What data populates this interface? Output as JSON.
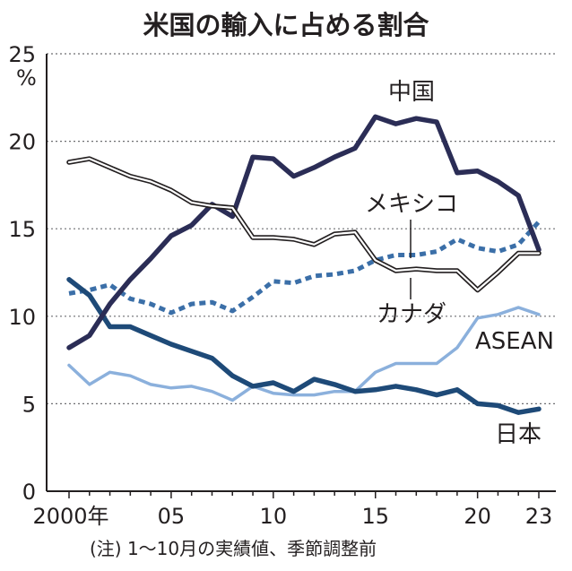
{
  "chart_data": {
    "type": "line",
    "title": "米国の輸入に占める割合",
    "ylabel": "%",
    "xlabel": "",
    "ylim": [
      0,
      25
    ],
    "yticks": [
      0,
      5,
      10,
      15,
      20,
      25
    ],
    "xlim": [
      2000,
      2023
    ],
    "xtick_values": [
      2000,
      2005,
      2010,
      2015,
      2020,
      2023
    ],
    "xtick_labels": [
      "2000年",
      "05",
      "10",
      "15",
      "20",
      "23"
    ],
    "x": [
      2000,
      2001,
      2002,
      2003,
      2004,
      2005,
      2006,
      2007,
      2008,
      2009,
      2010,
      2011,
      2012,
      2013,
      2014,
      2015,
      2016,
      2017,
      2018,
      2019,
      2020,
      2021,
      2022,
      2023
    ],
    "grid": "horizontal dotted",
    "series": [
      {
        "name": "中国",
        "color": "#2b2d56",
        "style": "solid-thick",
        "values": [
          8.2,
          8.9,
          10.7,
          12.1,
          13.3,
          14.6,
          15.2,
          16.4,
          15.7,
          19.1,
          19.0,
          18.0,
          18.5,
          19.1,
          19.6,
          21.4,
          21.0,
          21.3,
          21.1,
          18.2,
          18.3,
          17.7,
          16.9,
          13.8
        ]
      },
      {
        "name": "カナダ",
        "color": "#231f20",
        "style": "double-line",
        "values": [
          18.8,
          19.0,
          18.5,
          18.0,
          17.7,
          17.2,
          16.5,
          16.3,
          16.2,
          14.5,
          14.5,
          14.4,
          14.1,
          14.7,
          14.8,
          13.2,
          12.6,
          12.7,
          12.6,
          12.6,
          11.5,
          12.5,
          13.6,
          13.6
        ]
      },
      {
        "name": "メキシコ",
        "color": "#3b6fa8",
        "style": "dotted-thick",
        "values": [
          11.3,
          11.5,
          11.8,
          11.0,
          10.7,
          10.2,
          10.7,
          10.8,
          10.3,
          11.1,
          12.0,
          11.9,
          12.3,
          12.4,
          12.6,
          13.2,
          13.5,
          13.5,
          13.7,
          14.4,
          13.9,
          13.7,
          14.1,
          15.4
        ]
      },
      {
        "name": "ASEAN",
        "color": "#8bb0dc",
        "style": "solid-medium",
        "values": [
          7.2,
          6.1,
          6.8,
          6.6,
          6.1,
          5.9,
          6.0,
          5.7,
          5.2,
          6.0,
          5.6,
          5.5,
          5.5,
          5.7,
          5.7,
          6.8,
          7.3,
          7.3,
          7.3,
          8.2,
          9.9,
          10.1,
          10.5,
          10.1
        ]
      },
      {
        "name": "日本",
        "color": "#1e4a78",
        "style": "solid-thick",
        "values": [
          12.1,
          11.2,
          9.4,
          9.4,
          8.9,
          8.4,
          8.0,
          7.6,
          6.6,
          6.0,
          6.2,
          5.7,
          6.4,
          6.1,
          5.7,
          5.8,
          6.0,
          5.8,
          5.5,
          5.8,
          5.0,
          4.9,
          4.5,
          4.7
        ]
      }
    ],
    "series_labels": [
      "中国",
      "メキシコ",
      "カナダ",
      "ASEAN",
      "日本"
    ],
    "note": "(注) 1～10月の実績値、季節調整前"
  }
}
